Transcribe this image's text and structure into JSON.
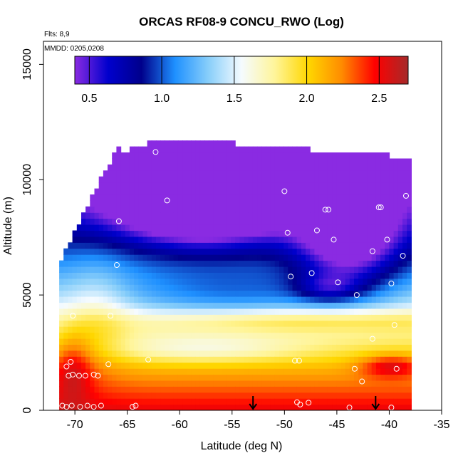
{
  "chart_data": {
    "type": "heatmap",
    "title": "ORCAS RF08-9 CONCU_RWO (Log)",
    "annotations": [
      "Flts: 8,9",
      "MMDD: 0205,0208"
    ],
    "xlabel": "Latitude (deg N)",
    "ylabel": "Altitude (m)",
    "xlim": [
      -73,
      -35
    ],
    "ylim": [
      0,
      16000
    ],
    "x_ticks": [
      -70,
      -65,
      -60,
      -55,
      -50,
      -45,
      -40,
      -35
    ],
    "x_tick_labels": [
      "-70",
      "-65",
      "-60",
      "-55",
      "-50",
      "-45",
      "-40",
      "-35"
    ],
    "y_ticks": [
      0,
      5000,
      10000,
      15000
    ],
    "y_tick_labels": [
      "0",
      "5000",
      "10000",
      "15000"
    ],
    "colorbar": {
      "range": [
        0.4,
        2.7
      ],
      "ticks": [
        0.5,
        1.0,
        1.5,
        2.0,
        2.5
      ],
      "tick_labels": [
        "0.5",
        "1.0",
        "1.5",
        "2.0",
        "2.5"
      ],
      "colors": [
        "#8a2be2",
        "#0000cd",
        "#00008b",
        "#1e90ff",
        "#87cefa",
        "#f5fbff",
        "#fff59a",
        "#ffd700",
        "#ff8c00",
        "#ff0000",
        "#a52a2a"
      ]
    },
    "arrows_latitude": [
      -53,
      -41.3
    ],
    "observation_points": [
      {
        "x": -71.2,
        "y": 200
      },
      {
        "x": -70.8,
        "y": 150
      },
      {
        "x": -70.3,
        "y": 200
      },
      {
        "x": -69.5,
        "y": 150
      },
      {
        "x": -68.8,
        "y": 200
      },
      {
        "x": -68.2,
        "y": 150
      },
      {
        "x": -67.5,
        "y": 200
      },
      {
        "x": -64.5,
        "y": 150
      },
      {
        "x": -64.2,
        "y": 200
      },
      {
        "x": -70.6,
        "y": 1500
      },
      {
        "x": -70.2,
        "y": 1550
      },
      {
        "x": -69.6,
        "y": 1500
      },
      {
        "x": -69.0,
        "y": 1500
      },
      {
        "x": -68.2,
        "y": 1550
      },
      {
        "x": -67.8,
        "y": 1500
      },
      {
        "x": -70.4,
        "y": 2100
      },
      {
        "x": -70.8,
        "y": 1900
      },
      {
        "x": -66.8,
        "y": 2000
      },
      {
        "x": -63.0,
        "y": 2200
      },
      {
        "x": -70.2,
        "y": 4100
      },
      {
        "x": -66.6,
        "y": 4100
      },
      {
        "x": -66.0,
        "y": 6300
      },
      {
        "x": -65.8,
        "y": 8200
      },
      {
        "x": -62.3,
        "y": 11200
      },
      {
        "x": -61.2,
        "y": 9100
      },
      {
        "x": -50.0,
        "y": 9500
      },
      {
        "x": -49.7,
        "y": 7700
      },
      {
        "x": -49.4,
        "y": 5800
      },
      {
        "x": -47.4,
        "y": 5950
      },
      {
        "x": -46.9,
        "y": 7800
      },
      {
        "x": -46.1,
        "y": 8700
      },
      {
        "x": -45.8,
        "y": 8700
      },
      {
        "x": -45.3,
        "y": 7400
      },
      {
        "x": -44.9,
        "y": 5550
      },
      {
        "x": -43.1,
        "y": 5000
      },
      {
        "x": -41.6,
        "y": 6900
      },
      {
        "x": -41.0,
        "y": 8800
      },
      {
        "x": -40.8,
        "y": 8800
      },
      {
        "x": -40.2,
        "y": 7400
      },
      {
        "x": -39.8,
        "y": 5500
      },
      {
        "x": -38.4,
        "y": 9300
      },
      {
        "x": -38.7,
        "y": 6700
      },
      {
        "x": -39.5,
        "y": 3700
      },
      {
        "x": -41.6,
        "y": 3100
      },
      {
        "x": -42.6,
        "y": 1250
      },
      {
        "x": -43.3,
        "y": 1800
      },
      {
        "x": -48.6,
        "y": 2150
      },
      {
        "x": -49.0,
        "y": 2150
      },
      {
        "x": -48.8,
        "y": 350
      },
      {
        "x": -48.5,
        "y": 250
      },
      {
        "x": -47.7,
        "y": 330
      },
      {
        "x": -43.8,
        "y": 120
      },
      {
        "x": -39.8,
        "y": 120
      },
      {
        "x": -39.3,
        "y": 1800
      }
    ]
  }
}
